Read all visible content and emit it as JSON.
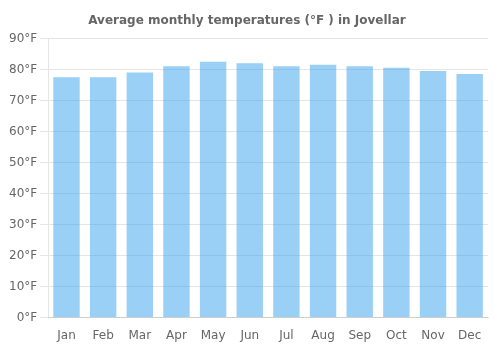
{
  "chart_data": {
    "type": "bar",
    "title": "Average monthly temperatures (°F ) in Jovellar",
    "categories": [
      "Jan",
      "Feb",
      "Mar",
      "Apr",
      "May",
      "Jun",
      "Jul",
      "Aug",
      "Sep",
      "Oct",
      "Nov",
      "Dec"
    ],
    "values": [
      77.5,
      77.5,
      79.0,
      81.0,
      82.5,
      82.0,
      81.0,
      81.5,
      81.0,
      80.5,
      79.5,
      78.5
    ],
    "ylim": [
      0,
      90
    ],
    "yticks": [
      {
        "value": 0,
        "label": "0°F"
      },
      {
        "value": 10,
        "label": "10°F"
      },
      {
        "value": 20,
        "label": "20°F"
      },
      {
        "value": 30,
        "label": "30°F"
      },
      {
        "value": 40,
        "label": "40°F"
      },
      {
        "value": 50,
        "label": "50°F"
      },
      {
        "value": 60,
        "label": "60°F"
      },
      {
        "value": 70,
        "label": "70°F"
      },
      {
        "value": 80,
        "label": "80°F"
      },
      {
        "value": 90,
        "label": "90°F"
      }
    ],
    "grid": true
  }
}
